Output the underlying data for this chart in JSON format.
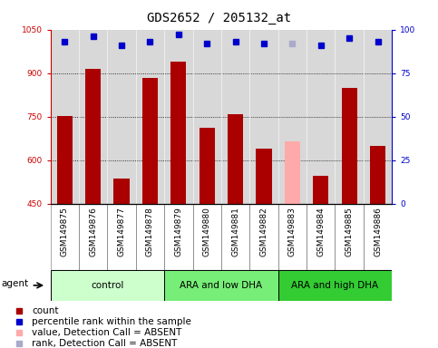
{
  "title": "GDS2652 / 205132_at",
  "samples": [
    "GSM149875",
    "GSM149876",
    "GSM149877",
    "GSM149878",
    "GSM149879",
    "GSM149880",
    "GSM149881",
    "GSM149882",
    "GSM149883",
    "GSM149884",
    "GSM149885",
    "GSM149886"
  ],
  "bar_values": [
    752,
    915,
    535,
    882,
    938,
    710,
    757,
    640,
    665,
    545,
    848,
    650
  ],
  "bar_colors": [
    "#aa0000",
    "#aa0000",
    "#aa0000",
    "#aa0000",
    "#aa0000",
    "#aa0000",
    "#aa0000",
    "#aa0000",
    "#ffaaaa",
    "#aa0000",
    "#aa0000",
    "#aa0000"
  ],
  "percentile_values": [
    93,
    96,
    91,
    93,
    97,
    92,
    93,
    92,
    92,
    91,
    95,
    93
  ],
  "percentile_colors": [
    "#0000cc",
    "#0000cc",
    "#0000cc",
    "#0000cc",
    "#0000cc",
    "#0000cc",
    "#0000cc",
    "#0000cc",
    "#aaaacc",
    "#0000cc",
    "#0000cc",
    "#0000cc"
  ],
  "ylim_left": [
    450,
    1050
  ],
  "ylim_right": [
    0,
    100
  ],
  "yticks_left": [
    450,
    600,
    750,
    900,
    1050
  ],
  "yticks_right": [
    0,
    25,
    50,
    75,
    100
  ],
  "groups": [
    {
      "label": "control",
      "start": 0,
      "end": 4,
      "color": "#ccffcc"
    },
    {
      "label": "ARA and low DHA",
      "start": 4,
      "end": 8,
      "color": "#77ee77"
    },
    {
      "label": "ARA and high DHA",
      "start": 8,
      "end": 12,
      "color": "#33cc33"
    }
  ],
  "legend_items": [
    {
      "color": "#aa0000",
      "label": "count"
    },
    {
      "color": "#0000cc",
      "label": "percentile rank within the sample"
    },
    {
      "color": "#ffaaaa",
      "label": "value, Detection Call = ABSENT"
    },
    {
      "color": "#aaaacc",
      "label": "rank, Detection Call = ABSENT"
    }
  ],
  "bar_width": 0.55,
  "background_color": "#ffffff",
  "plot_bg_color": "#d8d8d8",
  "sample_bg_color": "#d8d8d8",
  "title_fontsize": 10,
  "tick_fontsize": 6.5,
  "legend_fontsize": 7.5
}
